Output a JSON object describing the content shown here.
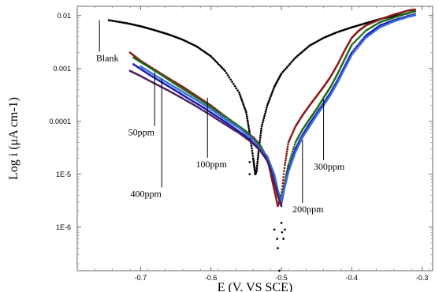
{
  "chart_data": {
    "type": "scatter",
    "xlabel": "E (V. VS SCE)",
    "ylabel": "Log i (μA cm-1)",
    "xlim": [
      -0.79,
      -0.285
    ],
    "ylim": [
      1.5e-07,
      0.015
    ],
    "yscale": "log",
    "grid": false,
    "x_ticks": [
      -0.7,
      -0.6,
      -0.5,
      -0.4,
      -0.3
    ],
    "x_tick_labels": [
      "-0.7",
      "-0.6",
      "-0.5",
      "-0.4",
      "-0.3"
    ],
    "y_ticks": [
      0.01,
      0.001,
      0.0001,
      1e-05,
      1e-06
    ],
    "y_tick_labels": [
      "0.01",
      "0.001",
      "0.0001",
      "1E-5",
      "1E-6"
    ],
    "series": [
      {
        "name": "Blank",
        "color": "#000000",
        "anchor": [
          -0.745,
          0.0082
        ],
        "x": [
          -0.745,
          -0.72,
          -0.7,
          -0.68,
          -0.66,
          -0.64,
          -0.62,
          -0.6,
          -0.58,
          -0.56,
          -0.55,
          -0.545,
          -0.54,
          -0.537,
          -0.535,
          -0.532,
          -0.528,
          -0.52,
          -0.51,
          -0.5,
          -0.48,
          -0.46,
          -0.44,
          -0.42,
          -0.4,
          -0.38,
          -0.36,
          -0.34,
          -0.32
        ],
        "y": [
          0.0082,
          0.0072,
          0.0063,
          0.0053,
          0.0044,
          0.0035,
          0.0026,
          0.0017,
          0.0009,
          0.00035,
          0.00015,
          6e-05,
          2e-05,
          1e-05,
          1.2e-05,
          3e-05,
          8e-05,
          0.0002,
          0.00045,
          0.0008,
          0.0016,
          0.0027,
          0.0038,
          0.0049,
          0.006,
          0.0072,
          0.0086,
          0.0098,
          0.011
        ]
      },
      {
        "name": "50ppm",
        "color": "#8b1a1a",
        "anchor": [
          -0.68,
          0.00085
        ],
        "x": [
          -0.715,
          -0.7,
          -0.68,
          -0.66,
          -0.64,
          -0.62,
          -0.6,
          -0.58,
          -0.56,
          -0.54,
          -0.53,
          -0.52,
          -0.515,
          -0.51,
          -0.505,
          -0.5,
          -0.495,
          -0.49,
          -0.48,
          -0.47,
          -0.46,
          -0.45,
          -0.44,
          -0.43,
          -0.42,
          -0.41,
          -0.4,
          -0.39,
          -0.38,
          -0.36,
          -0.34,
          -0.32,
          -0.31
        ],
        "y": [
          0.002,
          0.0014,
          0.00095,
          0.00065,
          0.00045,
          0.0003,
          0.0002,
          0.000125,
          8e-05,
          5e-05,
          3.5e-05,
          2e-05,
          1e-05,
          5e-06,
          2.5e-06,
          4e-06,
          1.5e-05,
          4e-05,
          8e-05,
          0.00013,
          0.0002,
          0.0003,
          0.00045,
          0.0007,
          0.0012,
          0.0022,
          0.0038,
          0.0052,
          0.0065,
          0.0085,
          0.0105,
          0.0125,
          0.013
        ]
      },
      {
        "name": "100ppm",
        "color": "#1b6b1b",
        "anchor": [
          -0.605,
          0.00028
        ],
        "x": [
          -0.71,
          -0.69,
          -0.67,
          -0.65,
          -0.63,
          -0.61,
          -0.59,
          -0.57,
          -0.55,
          -0.53,
          -0.52,
          -0.51,
          -0.505,
          -0.5,
          -0.495,
          -0.49,
          -0.48,
          -0.47,
          -0.46,
          -0.45,
          -0.44,
          -0.43,
          -0.42,
          -0.41,
          -0.4,
          -0.38,
          -0.36,
          -0.34,
          -0.32,
          -0.31
        ],
        "y": [
          0.0016,
          0.0011,
          0.00075,
          0.0005,
          0.00034,
          0.00023,
          0.00015,
          0.0001,
          6.5e-05,
          3.5e-05,
          2e-05,
          9e-06,
          4.5e-06,
          3.5e-06,
          7e-06,
          1.5e-05,
          4e-05,
          7e-05,
          0.00011,
          0.00017,
          0.00028,
          0.00045,
          0.0008,
          0.0015,
          0.0028,
          0.0052,
          0.0075,
          0.0092,
          0.0112,
          0.012
        ]
      },
      {
        "name": "200ppm",
        "color": "#1414b4",
        "anchor": [
          -0.47,
          4.5e-05
        ],
        "x": [
          -0.71,
          -0.69,
          -0.67,
          -0.65,
          -0.63,
          -0.61,
          -0.59,
          -0.57,
          -0.55,
          -0.53,
          -0.52,
          -0.51,
          -0.505,
          -0.5,
          -0.495,
          -0.49,
          -0.48,
          -0.47,
          -0.46,
          -0.45,
          -0.44,
          -0.43,
          -0.42,
          -0.41,
          -0.4,
          -0.38,
          -0.36,
          -0.34,
          -0.32,
          -0.31
        ],
        "y": [
          0.0012,
          0.0008,
          0.00055,
          0.00038,
          0.00026,
          0.00018,
          0.00012,
          8e-05,
          5.2e-05,
          3e-05,
          1.8e-05,
          8e-06,
          4e-06,
          2.8e-06,
          6e-06,
          1.2e-05,
          3e-05,
          5.5e-05,
          9e-05,
          0.00014,
          0.00022,
          0.00035,
          0.0006,
          0.0011,
          0.002,
          0.0042,
          0.0065,
          0.0082,
          0.0098,
          0.0105
        ]
      },
      {
        "name": "300ppm",
        "color": "#3a6ed8",
        "anchor": [
          -0.44,
          0.00026
        ],
        "x": [
          -0.7,
          -0.68,
          -0.66,
          -0.64,
          -0.62,
          -0.6,
          -0.58,
          -0.56,
          -0.54,
          -0.52,
          -0.51,
          -0.505,
          -0.5,
          -0.495,
          -0.49,
          -0.48,
          -0.47,
          -0.46,
          -0.45,
          -0.44,
          -0.43,
          -0.42,
          -0.41,
          -0.4,
          -0.38,
          -0.36,
          -0.34,
          -0.32,
          -0.31
        ],
        "y": [
          0.0011,
          0.00075,
          0.00052,
          0.00036,
          0.00025,
          0.00017,
          0.00011,
          7.5e-05,
          4.5e-05,
          2.2e-05,
          1e-05,
          5e-06,
          3e-06,
          6e-06,
          1.1e-05,
          2.6e-05,
          5e-05,
          8e-05,
          0.00013,
          0.0002,
          0.00032,
          0.00055,
          0.001,
          0.0018,
          0.0038,
          0.006,
          0.0078,
          0.0095,
          0.0102
        ]
      },
      {
        "name": "400ppm",
        "color": "#4b1f5e",
        "anchor": [
          -0.67,
          0.00065
        ],
        "x": [
          -0.715,
          -0.7,
          -0.68,
          -0.66,
          -0.64,
          -0.62,
          -0.6,
          -0.58,
          -0.56,
          -0.54,
          -0.53,
          -0.52,
          -0.515,
          -0.51,
          -0.505,
          -0.5
        ],
        "y": [
          0.0009,
          0.00072,
          0.00052,
          0.00038,
          0.00027,
          0.00019,
          0.00013,
          8.8e-05,
          6e-05,
          3.8e-05,
          2.8e-05,
          1.8e-05,
          1.2e-05,
          7e-06,
          4e-06,
          2.5e-06
        ]
      }
    ],
    "annotations": [
      {
        "text": "Blank",
        "series": "Blank"
      },
      {
        "text": "50ppm",
        "series": "50ppm"
      },
      {
        "text": "100ppm",
        "series": "100ppm"
      },
      {
        "text": "200ppm",
        "series": "200ppm"
      },
      {
        "text": "300ppm",
        "series": "300ppm"
      },
      {
        "text": "400ppm",
        "series": "400ppm"
      }
    ],
    "stray_points": [
      {
        "x": -0.545,
        "y": 1.7e-05
      },
      {
        "x": -0.545,
        "y": 1e-05
      },
      {
        "x": -0.51,
        "y": 9e-07
      },
      {
        "x": -0.506,
        "y": 6e-07
      },
      {
        "x": -0.505,
        "y": 4e-07
      },
      {
        "x": -0.503,
        "y": 1.5e-07
      },
      {
        "x": -0.5,
        "y": 1.2e-06
      },
      {
        "x": -0.499,
        "y": 8e-07
      },
      {
        "x": -0.497,
        "y": 6e-07
      },
      {
        "x": -0.495,
        "y": 9e-07
      }
    ]
  }
}
